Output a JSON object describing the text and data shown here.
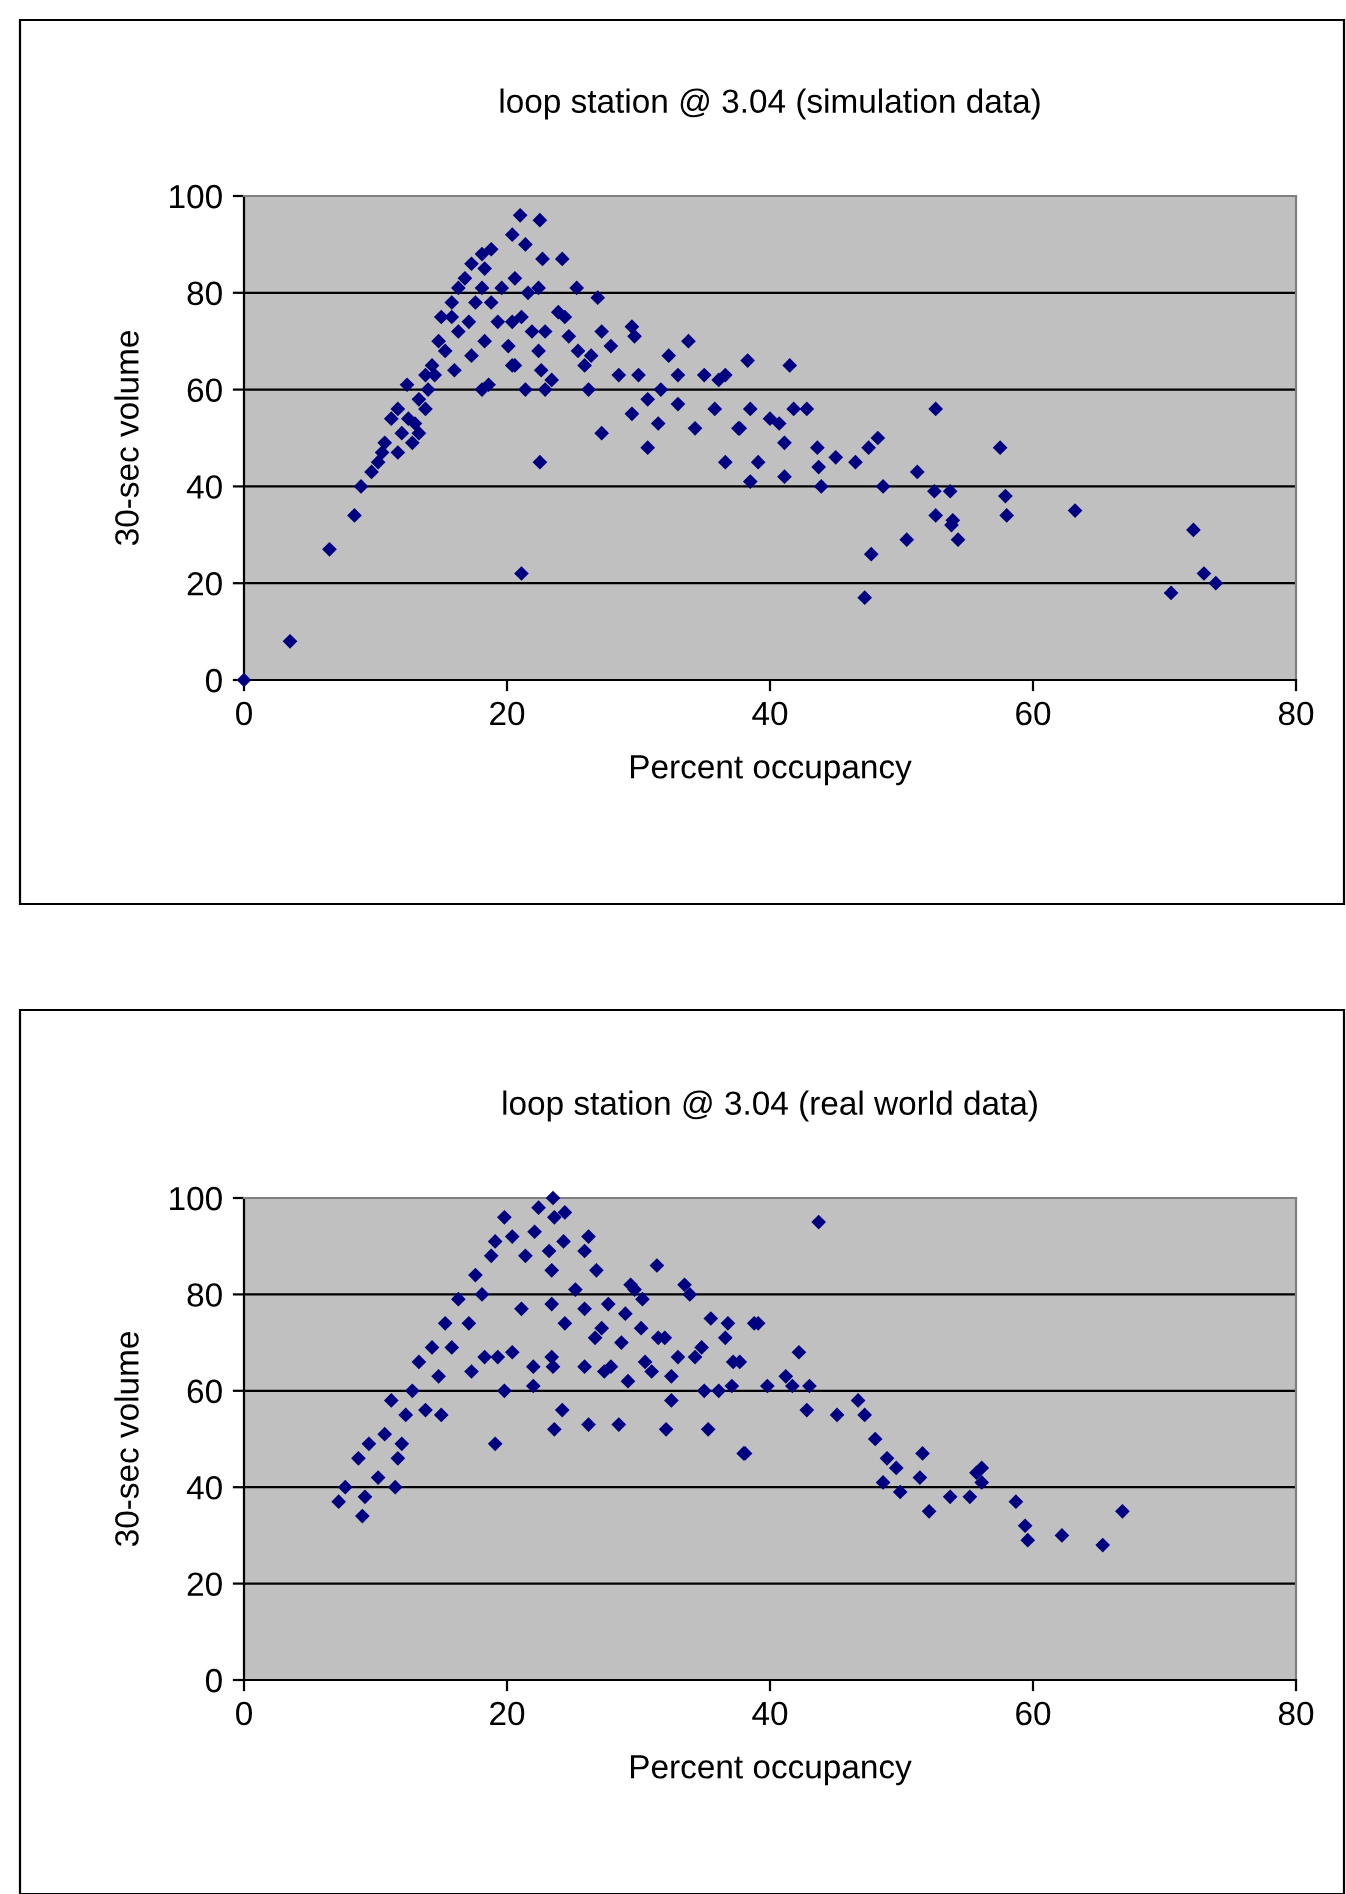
{
  "chart_data": [
    {
      "type": "scatter",
      "title": "loop station @ 3.04 (simulation data)",
      "xlabel": "Percent occupancy",
      "ylabel": "30-sec volume",
      "color": "#000080",
      "marker": "diamond",
      "grid": "y",
      "xlim": [
        0,
        80
      ],
      "ylim": [
        0,
        100
      ],
      "xticks": [
        0,
        20,
        40,
        60,
        80
      ],
      "yticks": [
        0,
        20,
        40,
        60,
        80,
        100
      ],
      "x": [
        0,
        3.5,
        6.5,
        8.4,
        8.9,
        21.1,
        21.0,
        22.5,
        20.4,
        21.4,
        24.2,
        22.7,
        25.3,
        26.9,
        22.5,
        10.2,
        10.7,
        11.2,
        11.7,
        12.4,
        13.0,
        13.3,
        13.8,
        14.3,
        14.8,
        15.0,
        15.8,
        16.3,
        16.8,
        17.3,
        18.1,
        18.8,
        18.3,
        18.1,
        18.8,
        19.3,
        18.3,
        17.3,
        16.0,
        18.1,
        18.6,
        20.4,
        20.1,
        21.4,
        22.9,
        23.4,
        21.9,
        22.9,
        23.9,
        24.4,
        24.7,
        25.4,
        25.9,
        26.4,
        26.2,
        27.2,
        27.2,
        27.9,
        28.5,
        29.5,
        29.7,
        29.5,
        30.0,
        30.7,
        30.7,
        31.7,
        31.5,
        32.3,
        33.0,
        33.0,
        33.8,
        34.3,
        35.0,
        35.8,
        36.1,
        36.6,
        36.6,
        37.6,
        15.8,
        16.3,
        15.3,
        17.1,
        17.6,
        19.6,
        20.6,
        21.6,
        22.4,
        21.1,
        20.4,
        22.4,
        20.6,
        22.6,
        13.3,
        11.7,
        12.0,
        12.8,
        12.5,
        14.0,
        14.5,
        13.8,
        9.7,
        10.5,
        38.3,
        41.5,
        38.5,
        37.7,
        40.0,
        40.7,
        41.8,
        42.8,
        41.1,
        39.1,
        38.5,
        41.1,
        43.6,
        43.7,
        45.0,
        43.9,
        46.5,
        47.5,
        48.2,
        48.6,
        47.7,
        47.2,
        50.4,
        51.2,
        52.6,
        52.5,
        53.7,
        52.6,
        53.9,
        53.8,
        54.3,
        57.5,
        57.9,
        58.0,
        63.2,
        70.5,
        72.2,
        73.0,
        73.9
      ],
      "values": [
        0,
        8,
        27,
        34,
        40,
        22,
        96,
        95,
        92,
        90,
        87,
        87,
        81,
        79,
        45,
        45,
        49,
        54,
        56,
        61,
        53,
        58,
        63,
        65,
        70,
        75,
        78,
        81,
        83,
        86,
        88,
        89,
        85,
        81,
        78,
        74,
        70,
        67,
        64,
        60,
        61,
        65,
        69,
        60,
        60,
        62,
        72,
        72,
        76,
        75,
        71,
        68,
        65,
        67,
        60,
        72,
        51,
        69,
        63,
        73,
        71,
        55,
        63,
        48,
        58,
        60,
        53,
        67,
        63,
        57,
        70,
        52,
        63,
        56,
        62,
        63,
        45,
        52,
        75,
        72,
        68,
        74,
        78,
        81,
        83,
        80,
        81,
        75,
        74,
        68,
        65,
        64,
        51,
        47,
        51,
        49,
        54,
        60,
        63,
        56,
        43,
        47,
        66,
        65,
        56,
        52,
        54,
        53,
        56,
        56,
        49,
        45,
        41,
        42,
        48,
        44,
        46,
        40,
        45,
        48,
        50,
        40,
        26,
        17,
        29,
        43,
        56,
        39,
        39,
        34,
        33,
        32,
        29,
        48,
        38,
        34,
        35,
        18,
        31,
        22,
        20
      ]
    },
    {
      "type": "scatter",
      "title": "loop station @ 3.04 (real world data)",
      "xlabel": "Percent occupancy",
      "ylabel": "30-sec volume",
      "color": "#000080",
      "marker": "diamond",
      "grid": "y",
      "xlim": [
        0,
        80
      ],
      "ylim": [
        0,
        100
      ],
      "xticks": [
        0,
        20,
        40,
        60,
        80
      ],
      "yticks": [
        0,
        20,
        40,
        60,
        80,
        100
      ],
      "x": [
        7.2,
        9.0,
        9.2,
        7.7,
        8.7,
        9.5,
        11.5,
        11.7,
        10.2,
        10.7,
        11.2,
        12.3,
        12.0,
        12.8,
        13.3,
        13.8,
        14.3,
        15.0,
        14.8,
        15.3,
        15.8,
        16.3,
        17.1,
        17.6,
        17.3,
        18.3,
        18.1,
        18.8,
        19.1,
        19.3,
        19.8,
        19.1,
        19.8,
        20.4,
        20.4,
        21.1,
        21.4,
        22.0,
        22.0,
        22.1,
        22.4,
        23.5,
        23.6,
        24.4,
        23.2,
        24.3,
        23.4,
        23.4,
        23.4,
        23.5,
        24.2,
        23.6,
        24.4,
        25.2,
        25.9,
        25.9,
        26.2,
        25.9,
        26.2,
        26.7,
        26.8,
        27.2,
        27.7,
        27.4,
        27.9,
        28.5,
        28.7,
        29.0,
        29.2,
        29.4,
        29.7,
        30.2,
        30.5,
        30.3,
        31.0,
        31.5,
        31.4,
        32.0,
        32.5,
        32.1,
        32.5,
        33.0,
        33.5,
        33.9,
        34.3,
        34.8,
        35.0,
        35.3,
        35.5,
        36.1,
        36.6,
        36.8,
        37.1,
        37.2,
        38.0,
        38.8,
        43.7,
        39.1,
        37.7,
        38.1,
        39.8,
        41.2,
        41.7,
        42.2,
        43.0,
        42.8,
        45.1,
        46.7,
        47.2,
        48.0,
        48.9,
        49.6,
        51.6,
        48.6,
        49.9,
        51.4,
        52.1,
        53.7,
        55.2,
        55.7,
        56.1,
        56.1,
        58.7,
        59.4,
        59.6,
        62.2,
        65.3,
        66.8
      ],
      "values": [
        37,
        34,
        38,
        40,
        46,
        49,
        40,
        46,
        42,
        51,
        58,
        55,
        49,
        60,
        66,
        56,
        69,
        55,
        63,
        74,
        69,
        79,
        74,
        84,
        64,
        67,
        80,
        88,
        49,
        67,
        60,
        91,
        96,
        92,
        68,
        77,
        88,
        65,
        61,
        93,
        98,
        100,
        96,
        97,
        89,
        91,
        85,
        78,
        67,
        65,
        56,
        52,
        74,
        81,
        77,
        89,
        92,
        65,
        53,
        71,
        85,
        73,
        78,
        64,
        65,
        53,
        70,
        76,
        62,
        82,
        81,
        73,
        66,
        79,
        64,
        71,
        86,
        71,
        63,
        52,
        58,
        67,
        82,
        80,
        67,
        69,
        60,
        52,
        75,
        60,
        71,
        74,
        61,
        66,
        47,
        74,
        95,
        74,
        66,
        47,
        61,
        63,
        61,
        68,
        61,
        56,
        55,
        58,
        55,
        50,
        46,
        44,
        47,
        41,
        39,
        42,
        35,
        38,
        38,
        43,
        44,
        41,
        37,
        32,
        29,
        30,
        28,
        35
      ]
    }
  ]
}
